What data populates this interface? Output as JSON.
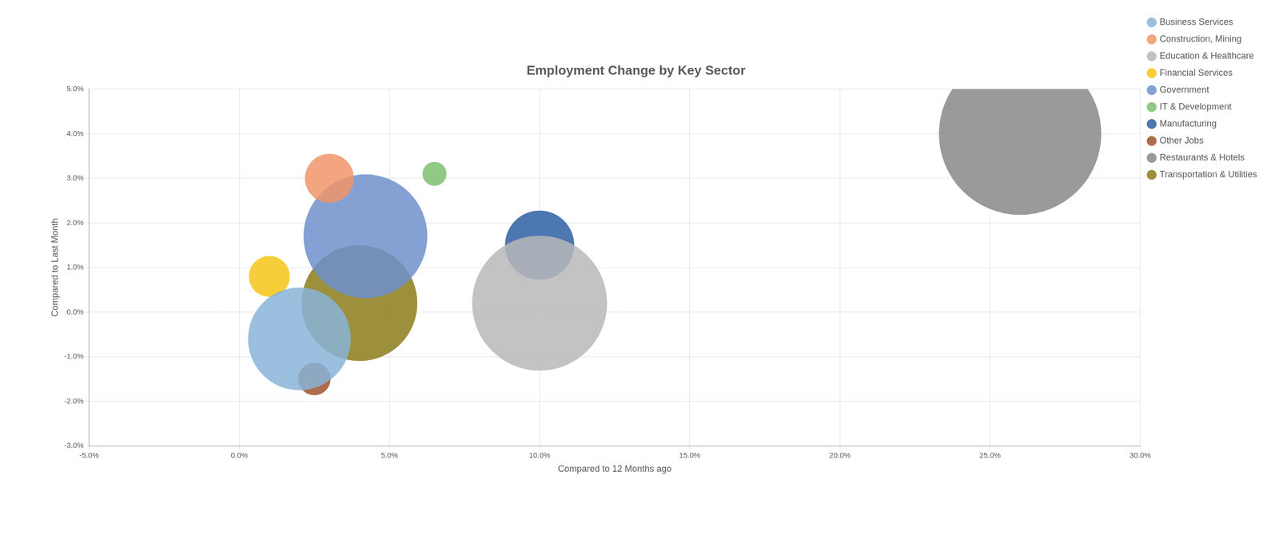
{
  "chart_data": {
    "type": "bubble",
    "title": "Employment Change by Key Sector",
    "xlabel": "Compared to 12 Months ago",
    "ylabel": "Compared to Last Month",
    "xlim": [
      -0.05,
      0.3
    ],
    "ylim": [
      -0.03,
      0.05
    ],
    "xticks": [
      {
        "value": -0.05,
        "label": "-5.0%"
      },
      {
        "value": 0.0,
        "label": "0.0%"
      },
      {
        "value": 0.05,
        "label": "5.0%"
      },
      {
        "value": 0.1,
        "label": "10.0%"
      },
      {
        "value": 0.15,
        "label": "15.0%"
      },
      {
        "value": 0.2,
        "label": "20.0%"
      },
      {
        "value": 0.25,
        "label": "25.0%"
      },
      {
        "value": 0.3,
        "label": "30.0%"
      }
    ],
    "yticks": [
      {
        "value": -0.03,
        "label": "-3.0%"
      },
      {
        "value": -0.02,
        "label": "-2.0%"
      },
      {
        "value": -0.01,
        "label": "-1.0%"
      },
      {
        "value": 0.0,
        "label": "0.0%"
      },
      {
        "value": 0.01,
        "label": "1.0%"
      },
      {
        "value": 0.02,
        "label": "2.0%"
      },
      {
        "value": 0.03,
        "label": "3.0%"
      },
      {
        "value": 0.04,
        "label": "4.0%"
      },
      {
        "value": 0.05,
        "label": "5.0%"
      }
    ],
    "grid": true,
    "legend": "right",
    "series": [
      {
        "name": "Business Services",
        "color": "#8ab4d8",
        "x": [
          0.02
        ],
        "values": [
          -0.006
        ],
        "size": [
          22000
        ]
      },
      {
        "name": "Construction, Mining",
        "color": "#f0956a",
        "x": [
          0.03
        ],
        "values": [
          0.03
        ],
        "size": [
          5000
        ]
      },
      {
        "name": "Education & Healthcare",
        "color": "#b8b8b8",
        "x": [
          0.1
        ],
        "values": [
          0.002
        ],
        "size": [
          38000
        ]
      },
      {
        "name": "Financial Services",
        "color": "#f5c518",
        "x": [
          0.01
        ],
        "values": [
          0.008
        ],
        "size": [
          3500
        ]
      },
      {
        "name": "Government",
        "color": "#7090cc",
        "x": [
          0.042
        ],
        "values": [
          0.017
        ],
        "size": [
          32000
        ]
      },
      {
        "name": "IT & Development",
        "color": "#7cbf6e",
        "x": [
          0.065
        ],
        "values": [
          0.031
        ],
        "size": [
          1200
        ]
      },
      {
        "name": "Manufacturing",
        "color": "#2e5fa3",
        "x": [
          0.1
        ],
        "values": [
          0.015
        ],
        "size": [
          10000
        ]
      },
      {
        "name": "Other Jobs",
        "color": "#a0522d",
        "x": [
          0.025
        ],
        "values": [
          -0.015
        ],
        "size": [
          2200
        ]
      },
      {
        "name": "Restaurants & Hotels",
        "color": "#888888",
        "x": [
          0.26
        ],
        "values": [
          0.04
        ],
        "size": [
          55000
        ]
      },
      {
        "name": "Transportation & Utilities",
        "color": "#8b7d1a",
        "x": [
          0.04
        ],
        "values": [
          0.002
        ],
        "size": [
          28000
        ]
      }
    ]
  }
}
